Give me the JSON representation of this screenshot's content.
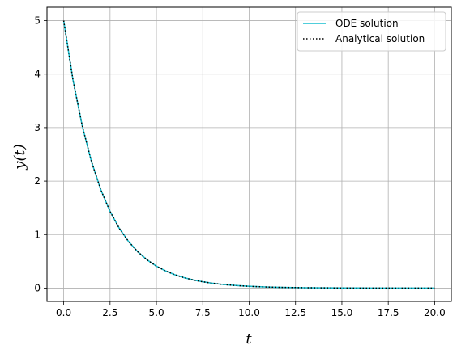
{
  "chart_data": {
    "type": "line",
    "xlabel": "t",
    "ylabel": "y(t)",
    "xlim": [
      -0.9,
      20.9
    ],
    "ylim": [
      -0.25,
      5.25
    ],
    "xticks": [
      0.0,
      2.5,
      5.0,
      7.5,
      10.0,
      12.5,
      15.0,
      17.5,
      20.0
    ],
    "xtick_labels": [
      "0.0",
      "2.5",
      "5.0",
      "7.5",
      "10.0",
      "12.5",
      "15.0",
      "17.5",
      "20.0"
    ],
    "yticks": [
      0,
      1,
      2,
      3,
      4,
      5
    ],
    "ytick_labels": [
      "0",
      "1",
      "2",
      "3",
      "4",
      "5"
    ],
    "grid": true,
    "legend_position": "top-right",
    "series": [
      {
        "name": "ODE solution",
        "color": "#17becf",
        "style": "solid",
        "x": [
          0,
          0.5,
          1,
          1.5,
          2,
          2.5,
          3,
          3.5,
          4,
          4.5,
          5,
          5.5,
          6,
          6.5,
          7,
          7.5,
          8,
          8.5,
          9,
          9.5,
          10,
          10.5,
          11,
          11.5,
          12,
          12.5,
          13,
          13.5,
          14,
          14.5,
          15,
          15.5,
          16,
          16.5,
          17,
          17.5,
          18,
          18.5,
          19,
          19.5,
          20
        ],
        "y": [
          5.0,
          3.894,
          3.033,
          2.362,
          1.839,
          1.433,
          1.116,
          0.869,
          0.677,
          0.527,
          0.41,
          0.32,
          0.249,
          0.194,
          0.151,
          0.118,
          0.092,
          0.071,
          0.056,
          0.043,
          0.034,
          0.026,
          0.02,
          0.016,
          0.012,
          0.01,
          0.007,
          0.006,
          0.005,
          0.004,
          0.003,
          0.002,
          0.002,
          0.001,
          0.001,
          0.001,
          0.001,
          0.0005,
          0.0004,
          0.0003,
          0.0002
        ]
      },
      {
        "name": "Analytical solution",
        "color": "#000000",
        "style": "dotted",
        "x": [
          0,
          0.5,
          1,
          1.5,
          2,
          2.5,
          3,
          3.5,
          4,
          4.5,
          5,
          5.5,
          6,
          6.5,
          7,
          7.5,
          8,
          8.5,
          9,
          9.5,
          10,
          10.5,
          11,
          11.5,
          12,
          12.5,
          13,
          13.5,
          14,
          14.5,
          15,
          15.5,
          16,
          16.5,
          17,
          17.5,
          18,
          18.5,
          19,
          19.5,
          20
        ],
        "y": [
          5.0,
          3.894,
          3.033,
          2.362,
          1.839,
          1.433,
          1.116,
          0.869,
          0.677,
          0.527,
          0.41,
          0.32,
          0.249,
          0.194,
          0.151,
          0.118,
          0.092,
          0.071,
          0.056,
          0.043,
          0.034,
          0.026,
          0.02,
          0.016,
          0.012,
          0.01,
          0.007,
          0.006,
          0.005,
          0.004,
          0.003,
          0.002,
          0.002,
          0.001,
          0.001,
          0.001,
          0.001,
          0.0005,
          0.0004,
          0.0003,
          0.0002
        ]
      }
    ]
  }
}
